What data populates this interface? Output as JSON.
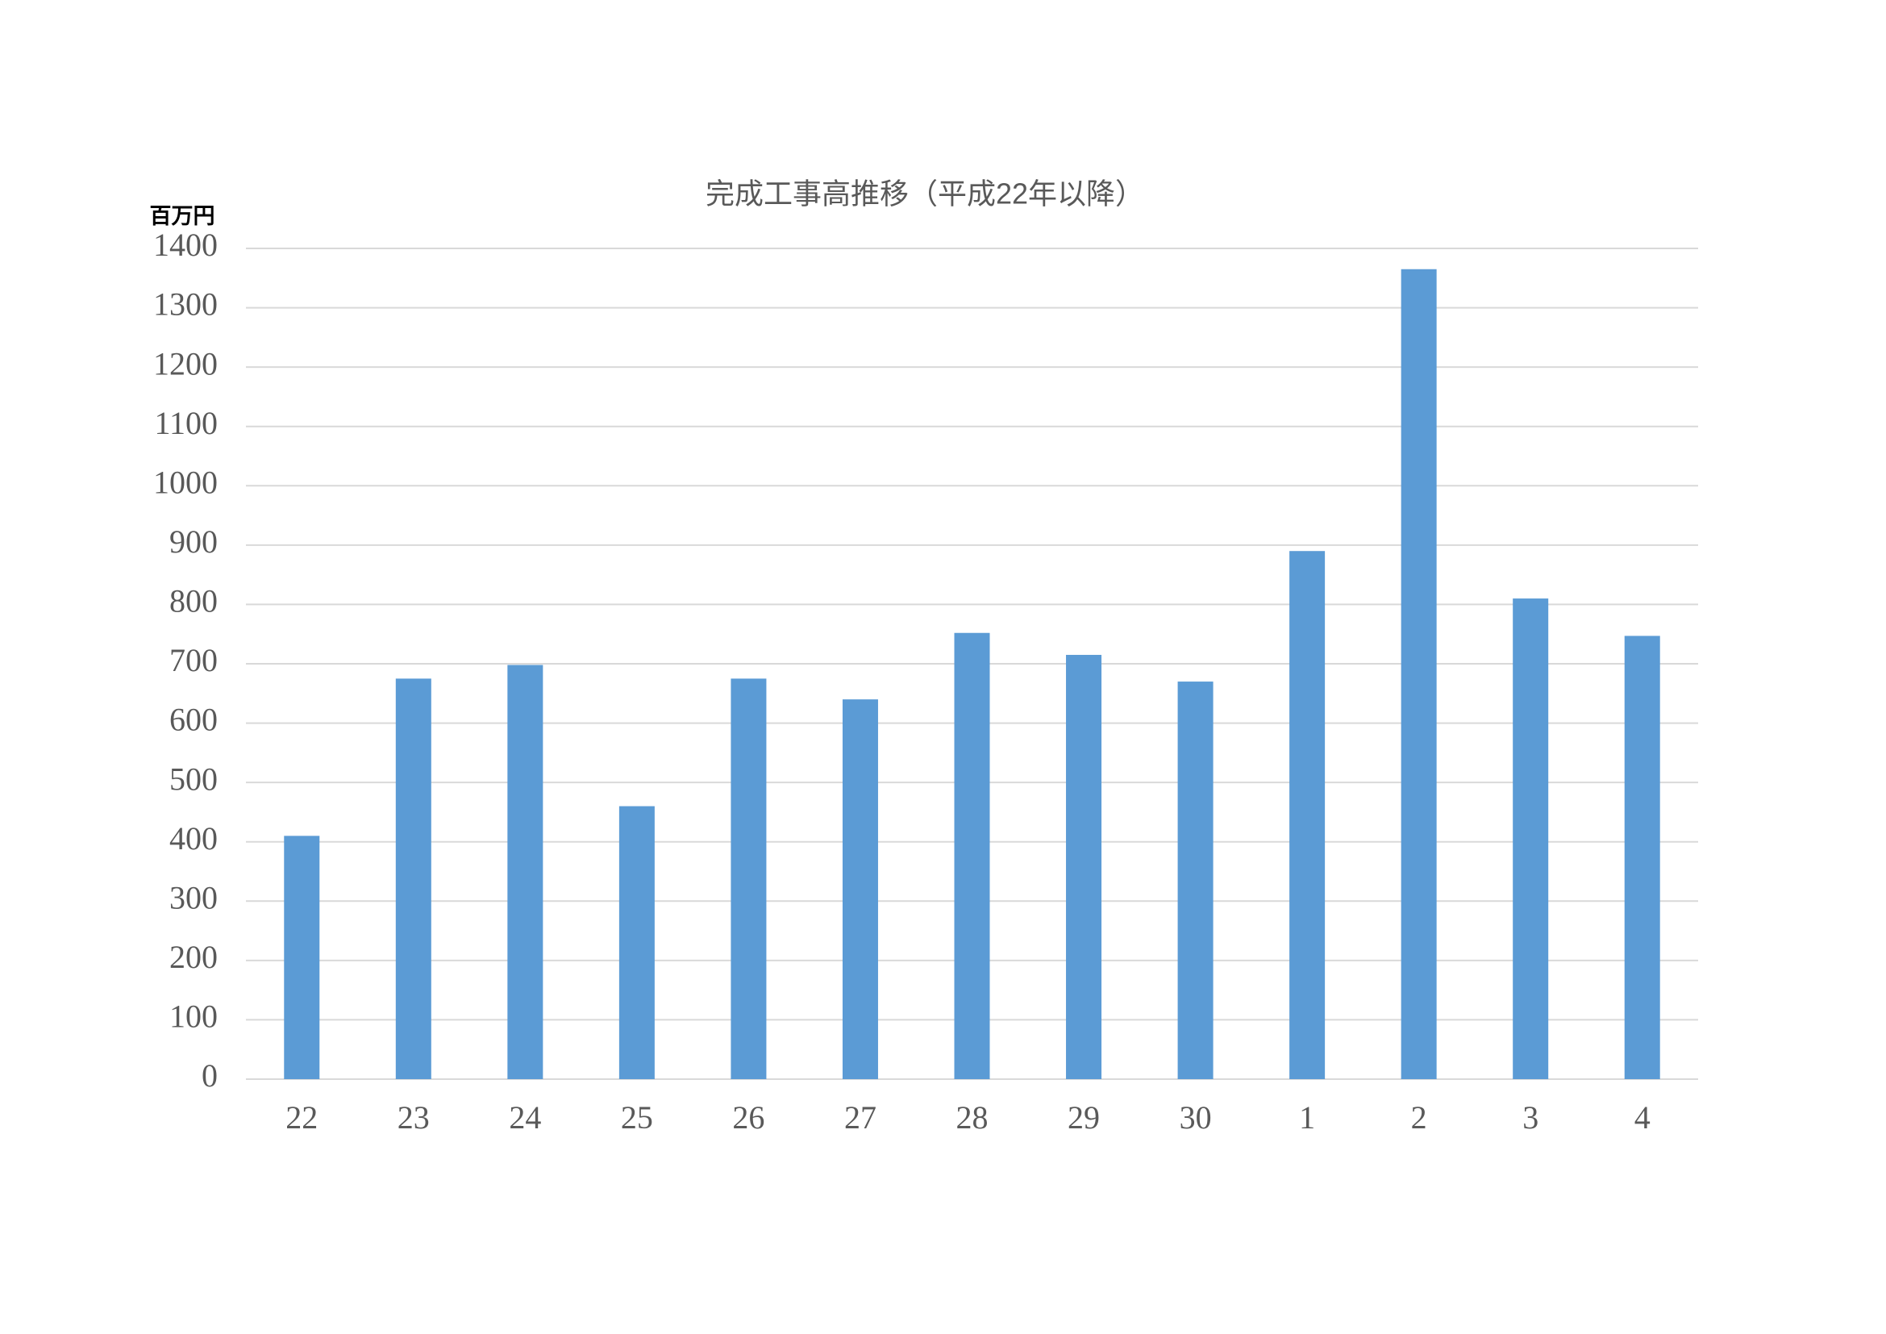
{
  "chart_data": {
    "type": "bar",
    "title": "完成工事高推移（平成22年以降）",
    "y_label": "百万円",
    "categories": [
      "22",
      "23",
      "24",
      "25",
      "26",
      "27",
      "28",
      "29",
      "30",
      "1",
      "2",
      "3",
      "4"
    ],
    "values": [
      410,
      675,
      698,
      460,
      675,
      640,
      752,
      715,
      670,
      890,
      1365,
      810,
      747
    ],
    "color": "#5b9bd5",
    "ylim": [
      0,
      1400
    ],
    "yticks": [
      0,
      100,
      200,
      300,
      400,
      500,
      600,
      700,
      800,
      900,
      1000,
      1100,
      1200,
      1300,
      1400
    ],
    "grid": true
  }
}
